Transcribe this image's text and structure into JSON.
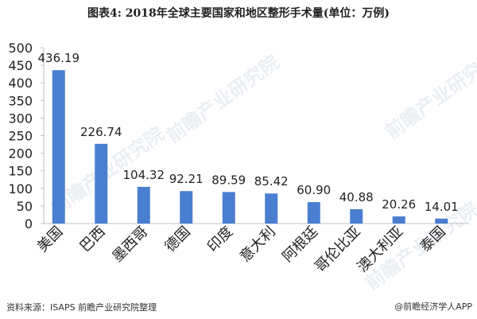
{
  "title": "图表4: 2018年全球主要国家和地区整形手术量(单位：万例)",
  "source": "资料来源：ISAPS 前瞻产业研究院整理",
  "brand": "@前瞻经济学人APP",
  "watermark": "前瞻产业研究院",
  "colors": {
    "bar": "#4a7ed1",
    "axis": "#c0c0c0"
  },
  "chart_data": {
    "type": "bar",
    "title": "图表4: 2018年全球主要国家和地区整形手术量(单位：万例)",
    "categories": [
      "美国",
      "巴西",
      "墨西哥",
      "德国",
      "印度",
      "意大利",
      "阿根廷",
      "哥伦比亚",
      "澳大利亚",
      "泰国"
    ],
    "values": [
      436.19,
      226.74,
      104.32,
      92.21,
      89.59,
      85.42,
      60.9,
      40.88,
      20.26,
      14.01
    ],
    "value_labels": [
      "436.19",
      "226.74",
      "104.32",
      "92.21",
      "89.59",
      "85.42",
      "60.90",
      "40.88",
      "20.26",
      "14.01"
    ],
    "ylim": [
      0,
      500
    ],
    "yticks": [
      0,
      50,
      100,
      150,
      200,
      250,
      300,
      350,
      400,
      450,
      500
    ],
    "grid": false,
    "legend": "none"
  }
}
